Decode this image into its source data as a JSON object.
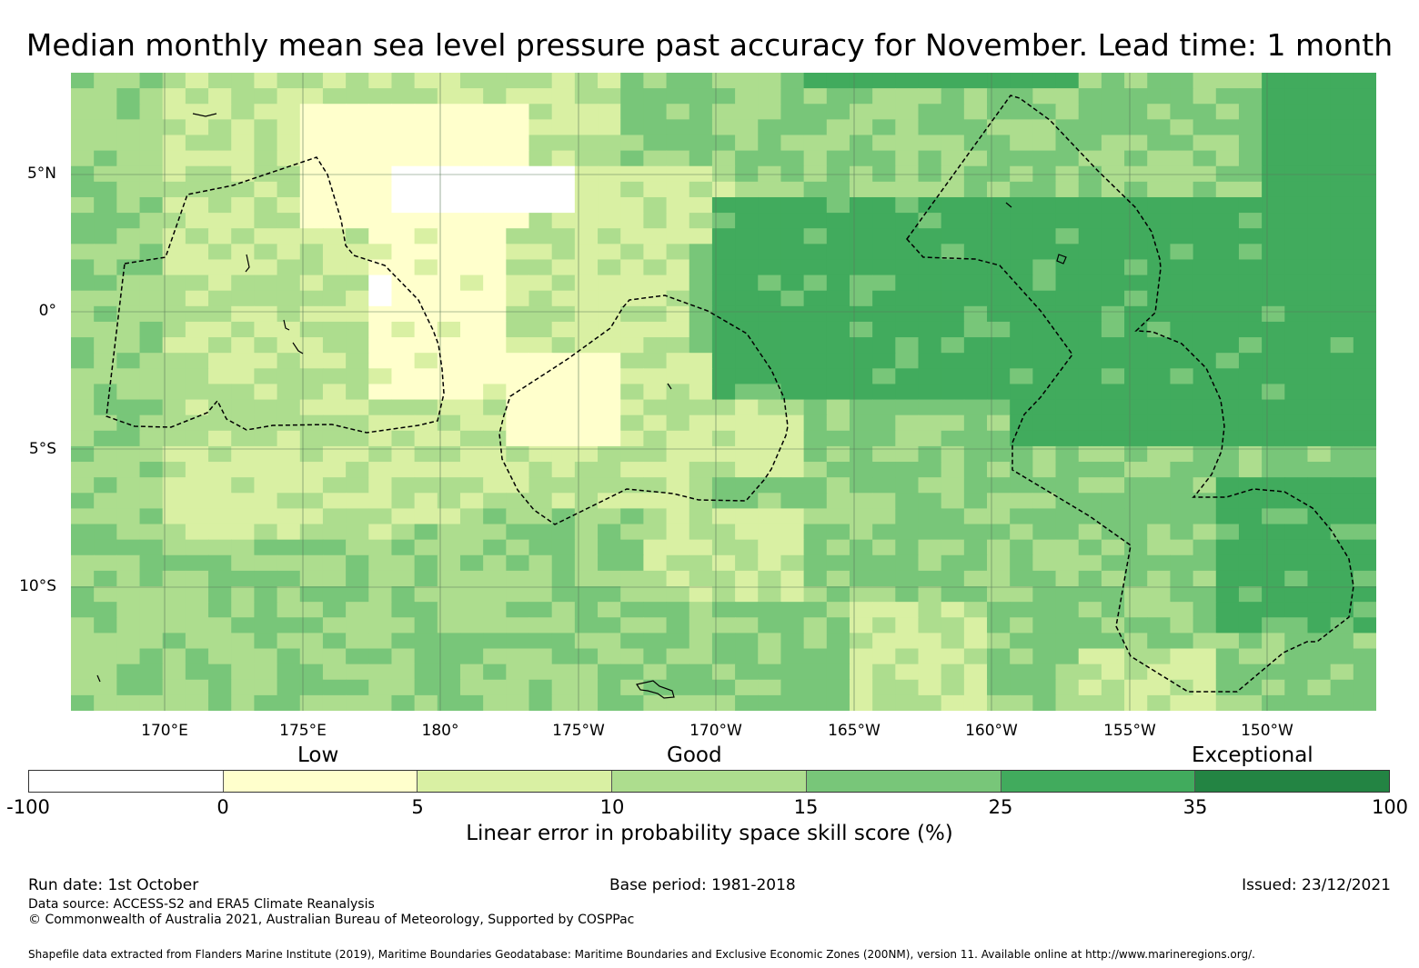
{
  "title": "Median monthly mean sea level pressure past accuracy for November. Lead time: 1 month",
  "map": {
    "latitude_labels": [
      "5°N",
      "0°",
      "5°S",
      "10°S"
    ],
    "longitude_labels": [
      "170°E",
      "175°E",
      "180°",
      "175°W",
      "170°W",
      "165°W",
      "160°W",
      "155°W",
      "150°W"
    ],
    "regions": [
      "skill-score-grid",
      "coastlines",
      "eez-boundaries"
    ]
  },
  "legend": {
    "category_labels": [
      "Low",
      "Good",
      "Exceptional"
    ],
    "tick_labels": [
      "-100",
      "0",
      "5",
      "10",
      "15",
      "25",
      "35",
      "100"
    ],
    "colors": [
      "#ffffff",
      "#ffffcc",
      "#d9f0a3",
      "#addd8e",
      "#78c679",
      "#41ab5d",
      "#238443"
    ],
    "axis_label": "Linear error in probability space skill score (%)"
  },
  "footer": {
    "run_date": "Run date: 1st October",
    "base_period": "Base period: 1981-2018",
    "issued": "Issued: 23/12/2021",
    "data_source": "Data source: ACCESS-S2 and ERA5 Climate Reanalysis",
    "copyright": "© Commonwealth of Australia 2021, Australian Bureau of Meteorology, Supported by COSPPac",
    "shapefile_credit": "Shapefile data extracted from Flanders Marine Institute (2019), Maritime Boundaries Geodatabase: Maritime Boundaries and Exclusive Economic Zones (200NM), version 11. Available online at http://www.marineregions.org/."
  }
}
